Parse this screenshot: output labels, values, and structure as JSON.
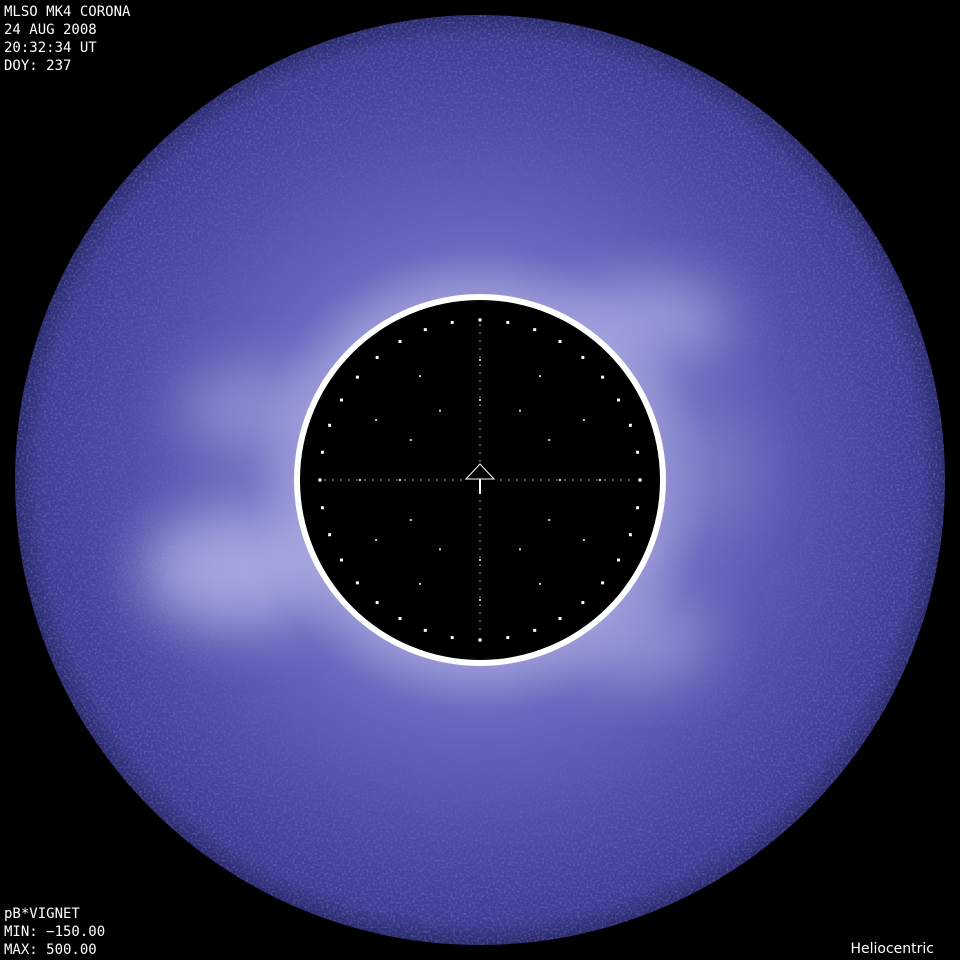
{
  "header": {
    "instrument": "MLSO MK4 CORONA",
    "date": "24 AUG 2008",
    "time": "20:32:34 UT",
    "doy": "DOY: 237"
  },
  "footer": {
    "product": "pB*VIGNET",
    "min": "MIN: −150.00",
    "max": "MAX: 500.00",
    "coordinate_system": "Heliocentric"
  },
  "colors": {
    "background": "#000000",
    "corona": "#4a4aa8",
    "corona_bright": "#b8b8e8",
    "limb": "#ffffff"
  },
  "icons": {
    "north": "north-arrow-icon"
  }
}
